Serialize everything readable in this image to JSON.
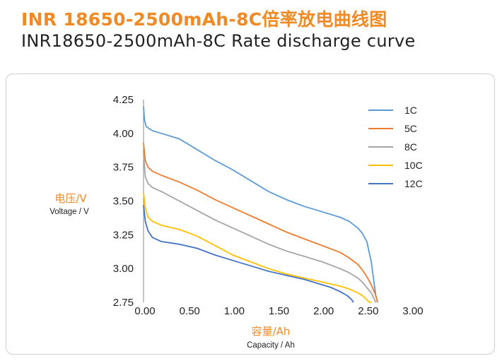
{
  "title_cn": "INR 18650-2500mAh-8C倍率放电曲线图",
  "title_en": "INR18650-2500mAh-8C Rate discharge curve",
  "chart_data": {
    "type": "line",
    "ylabel_cn": "电压/V",
    "ylabel_en": "Voltage / V",
    "xlabel_cn": "容量/Ah",
    "xlabel_en": "Capacity / Ah",
    "xlim": [
      0,
      3
    ],
    "ylim": [
      2.75,
      4.25
    ],
    "x_ticks": [
      "0.00",
      "0.50",
      "1.00",
      "1.50",
      "2.00",
      "2.50",
      "3.00"
    ],
    "y_ticks": [
      "4.25",
      "4.00",
      "3.75",
      "3.50",
      "3.25",
      "3.00",
      "2.75"
    ],
    "grid": false,
    "legend_position": "top-right",
    "series": [
      {
        "name": "1C",
        "color": "#5b9bd5",
        "x": [
          0,
          0.01,
          0.03,
          0.1,
          0.2,
          0.4,
          0.6,
          0.8,
          1.0,
          1.2,
          1.4,
          1.6,
          1.8,
          2.0,
          2.2,
          2.3,
          2.4,
          2.45,
          2.5,
          2.55,
          2.58,
          2.6,
          2.62
        ],
        "y": [
          4.2,
          4.1,
          4.05,
          4.02,
          4.0,
          3.96,
          3.88,
          3.8,
          3.73,
          3.65,
          3.57,
          3.51,
          3.46,
          3.42,
          3.38,
          3.35,
          3.3,
          3.26,
          3.2,
          3.05,
          2.9,
          2.8,
          2.75
        ]
      },
      {
        "name": "5C",
        "color": "#ed7d31",
        "x": [
          0,
          0.02,
          0.05,
          0.1,
          0.2,
          0.4,
          0.6,
          0.8,
          1.0,
          1.2,
          1.4,
          1.6,
          1.8,
          2.0,
          2.2,
          2.3,
          2.4,
          2.45,
          2.5,
          2.55,
          2.6,
          2.62
        ],
        "y": [
          3.93,
          3.8,
          3.75,
          3.72,
          3.69,
          3.64,
          3.58,
          3.51,
          3.45,
          3.39,
          3.33,
          3.27,
          3.22,
          3.17,
          3.12,
          3.08,
          3.03,
          2.99,
          2.94,
          2.88,
          2.8,
          2.75
        ]
      },
      {
        "name": "8C",
        "color": "#a5a5a5",
        "x": [
          0,
          0.02,
          0.05,
          0.1,
          0.2,
          0.4,
          0.6,
          0.8,
          1.0,
          1.2,
          1.4,
          1.6,
          1.8,
          2.0,
          2.2,
          2.3,
          2.4,
          2.45,
          2.5,
          2.55,
          2.58,
          2.6
        ],
        "y": [
          3.85,
          3.68,
          3.63,
          3.6,
          3.57,
          3.5,
          3.43,
          3.36,
          3.3,
          3.24,
          3.18,
          3.13,
          3.09,
          3.05,
          3.0,
          2.97,
          2.93,
          2.9,
          2.86,
          2.82,
          2.78,
          2.75
        ]
      },
      {
        "name": "10C",
        "color": "#ffc000",
        "x": [
          0,
          0.02,
          0.05,
          0.1,
          0.2,
          0.4,
          0.6,
          0.8,
          1.0,
          1.2,
          1.4,
          1.6,
          1.8,
          2.0,
          2.2,
          2.3,
          2.4,
          2.45,
          2.5,
          2.53,
          2.55
        ],
        "y": [
          3.56,
          3.45,
          3.38,
          3.35,
          3.32,
          3.29,
          3.24,
          3.17,
          3.1,
          3.05,
          3.0,
          2.96,
          2.93,
          2.9,
          2.87,
          2.85,
          2.82,
          2.8,
          2.77,
          2.75,
          2.75
        ]
      },
      {
        "name": "12C",
        "color": "#4472c4",
        "x": [
          0,
          0.02,
          0.05,
          0.1,
          0.2,
          0.4,
          0.6,
          0.8,
          1.0,
          1.2,
          1.4,
          1.6,
          1.8,
          2.0,
          2.1,
          2.2,
          2.28,
          2.33,
          2.35
        ],
        "y": [
          3.47,
          3.35,
          3.28,
          3.23,
          3.2,
          3.18,
          3.15,
          3.1,
          3.06,
          3.02,
          2.98,
          2.95,
          2.92,
          2.88,
          2.86,
          2.83,
          2.8,
          2.77,
          2.75
        ]
      }
    ]
  }
}
